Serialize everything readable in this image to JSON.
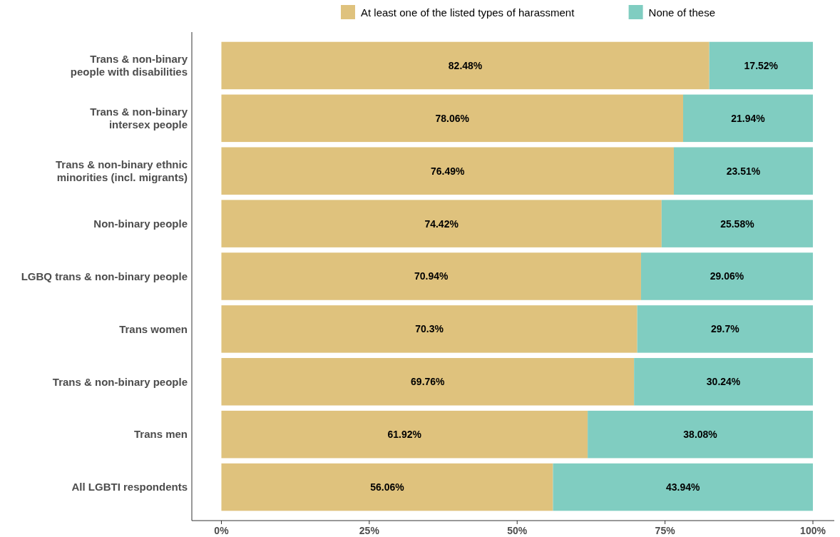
{
  "chart_data": {
    "type": "bar",
    "orientation": "horizontal",
    "stacked": true,
    "legend": "top",
    "categories": [
      "Trans & non-binary\npeople with disabilities",
      "Trans & non-binary\nintersex people",
      "Trans & non-binary ethnic\nminorities (incl. migrants)",
      "Non-binary people",
      "LGBQ trans & non-binary people",
      "Trans women",
      "Trans & non-binary people",
      "Trans men",
      "All LGBTI respondents"
    ],
    "series": [
      {
        "name": "At least one of the listed types of harassment",
        "color": "#dfc27d",
        "values": [
          82.48,
          78.06,
          76.49,
          74.42,
          70.94,
          70.3,
          69.76,
          61.92,
          56.06
        ],
        "value_labels": [
          "82.48%",
          "78.06%",
          "76.49%",
          "74.42%",
          "70.94%",
          "70.3%",
          "69.76%",
          "61.92%",
          "56.06%"
        ]
      },
      {
        "name": "None of these",
        "color": "#80cdc1",
        "values": [
          17.52,
          21.94,
          23.51,
          25.58,
          29.06,
          29.7,
          30.24,
          38.08,
          43.94
        ],
        "value_labels": [
          "17.52%",
          "21.94%",
          "23.51%",
          "25.58%",
          "29.06%",
          "29.7%",
          "30.24%",
          "38.08%",
          "43.94%"
        ]
      }
    ],
    "xlim": [
      -5,
      100
    ],
    "xticks": [
      {
        "value": 0,
        "label": "0%"
      },
      {
        "value": 25,
        "label": "25%"
      },
      {
        "value": 50,
        "label": "50%"
      },
      {
        "value": 75,
        "label": "75%"
      },
      {
        "value": 100,
        "label": "100%"
      }
    ]
  }
}
